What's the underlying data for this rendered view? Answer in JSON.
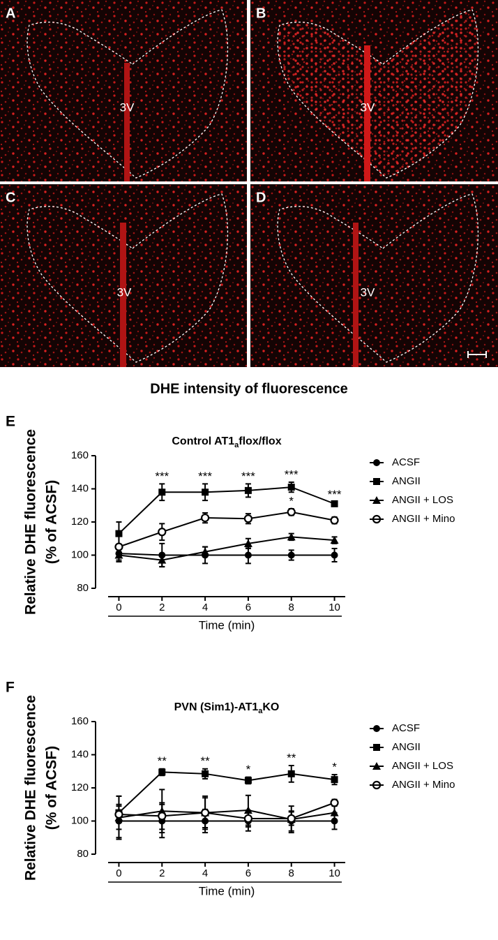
{
  "panels": [
    {
      "label": "A",
      "region": "3V"
    },
    {
      "label": "B",
      "region": "3V"
    },
    {
      "label": "C",
      "region": "3V"
    },
    {
      "label": "D",
      "region": "3V"
    }
  ],
  "heading": "DHE intensity of fluorescence",
  "chart_data": [
    {
      "type": "line",
      "panel_label": "E",
      "title": [
        "Control AT1",
        "a",
        "flox/flox"
      ],
      "ylabel": [
        "Relative DHE fluorescence",
        "(% of ACSF)"
      ],
      "xlabel": "Time (min)",
      "x": [
        0,
        2,
        4,
        6,
        8,
        10
      ],
      "xlim": [
        -0.5,
        10.5
      ],
      "xticks": [
        0,
        2,
        4,
        6,
        8,
        10
      ],
      "ylim": [
        80,
        160
      ],
      "yticks": [
        80,
        100,
        120,
        140,
        160
      ],
      "legend": "right",
      "series": [
        {
          "name": "ACSF",
          "color": "#000000",
          "marker": "circle",
          "values": [
            101,
            100,
            100,
            100,
            100,
            100
          ],
          "errors": [
            5,
            7,
            5,
            5,
            3,
            4
          ]
        },
        {
          "name": "ANGII",
          "color": "#000000",
          "marker": "square",
          "values": [
            113,
            138,
            138,
            139,
            141,
            131
          ],
          "errors": [
            7,
            5,
            5,
            4,
            3,
            1
          ],
          "annotations": [
            null,
            "***",
            "***",
            "***",
            "***",
            "***"
          ]
        },
        {
          "name": "ANGII + LOS",
          "color": "#000000",
          "marker": "triangle",
          "values": [
            100,
            97,
            102,
            107,
            111,
            109
          ],
          "errors": [
            4,
            4,
            3,
            3,
            2,
            2
          ]
        },
        {
          "name": "ANGII + Mino",
          "color": "#000000",
          "marker": "open-circle",
          "values": [
            105,
            114,
            122.5,
            122,
            126,
            121
          ],
          "errors": [
            8,
            5,
            3,
            3,
            2,
            2
          ],
          "annotations": [
            null,
            null,
            null,
            null,
            "*",
            null
          ]
        }
      ]
    },
    {
      "type": "line",
      "panel_label": "F",
      "title": [
        "PVN (Sim1)-AT1",
        "a",
        "KO"
      ],
      "ylabel": [
        "Relative DHE fluorescence",
        "(% of ACSF)"
      ],
      "xlabel": "Time (min)",
      "x": [
        0,
        2,
        4,
        6,
        8,
        10
      ],
      "xlim": [
        -0.5,
        10.5
      ],
      "xticks": [
        0,
        2,
        4,
        6,
        8,
        10
      ],
      "ylim": [
        80,
        160
      ],
      "yticks": [
        80,
        100,
        120,
        140,
        160
      ],
      "legend": "right",
      "series": [
        {
          "name": "ACSF",
          "color": "#000000",
          "marker": "circle",
          "values": [
            100,
            100,
            100,
            100,
            100,
            100
          ],
          "errors": [
            10,
            10,
            7,
            6,
            6,
            5
          ]
        },
        {
          "name": "ANGII",
          "color": "#000000",
          "marker": "square",
          "values": [
            105,
            129.5,
            128.5,
            124.5,
            128.5,
            125
          ],
          "errors": [
            10,
            2,
            3,
            2,
            5,
            3
          ],
          "annotations": [
            null,
            "**",
            "**",
            "*",
            "**",
            "*"
          ]
        },
        {
          "name": "ANGII + LOS",
          "color": "#000000",
          "marker": "triangle",
          "values": [
            102,
            106,
            105,
            106.5,
            101,
            105
          ],
          "errors": [
            13,
            13,
            10,
            9,
            8,
            5
          ]
        },
        {
          "name": "ANGII + Mino",
          "color": "#000000",
          "marker": "open-circle",
          "values": [
            104,
            103,
            105,
            101.5,
            101.5,
            111
          ],
          "errors": [
            5,
            8,
            9,
            5,
            4,
            2
          ]
        }
      ]
    }
  ]
}
